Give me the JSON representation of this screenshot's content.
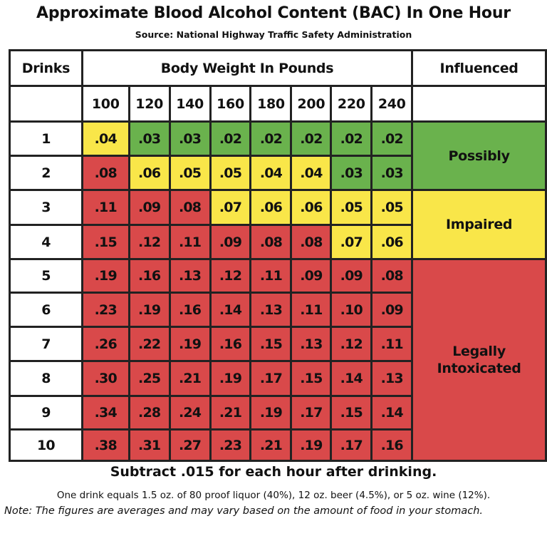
{
  "chart_data": {
    "type": "table",
    "title": "Approximate Blood Alcohol Content (BAC) In One Hour",
    "subtitle": "Source: National Highway Traffic Safety Administration",
    "row_header": "Drinks",
    "column_group_header": "Body Weight In Pounds",
    "zone_header": "Influenced",
    "columns": [
      "100",
      "120",
      "140",
      "160",
      "180",
      "200",
      "220",
      "240"
    ],
    "rows": [
      {
        "drinks": "1",
        "values": [
          ".04",
          ".03",
          ".03",
          ".02",
          ".02",
          ".02",
          ".02",
          ".02"
        ]
      },
      {
        "drinks": "2",
        "values": [
          ".08",
          ".06",
          ".05",
          ".05",
          ".04",
          ".04",
          ".03",
          ".03"
        ]
      },
      {
        "drinks": "3",
        "values": [
          ".11",
          ".09",
          ".08",
          ".07",
          ".06",
          ".06",
          ".05",
          ".05"
        ]
      },
      {
        "drinks": "4",
        "values": [
          ".15",
          ".12",
          ".11",
          ".09",
          ".08",
          ".08",
          ".07",
          ".06"
        ]
      },
      {
        "drinks": "5",
        "values": [
          ".19",
          ".16",
          ".13",
          ".12",
          ".11",
          ".09",
          ".09",
          ".08"
        ]
      },
      {
        "drinks": "6",
        "values": [
          ".23",
          ".19",
          ".16",
          ".14",
          ".13",
          ".11",
          ".10",
          ".09"
        ]
      },
      {
        "drinks": "7",
        "values": [
          ".26",
          ".22",
          ".19",
          ".16",
          ".15",
          ".13",
          ".12",
          ".11"
        ]
      },
      {
        "drinks": "8",
        "values": [
          ".30",
          ".25",
          ".21",
          ".19",
          ".17",
          ".15",
          ".14",
          ".13"
        ]
      },
      {
        "drinks": "9",
        "values": [
          ".34",
          ".28",
          ".24",
          ".21",
          ".19",
          ".17",
          ".15",
          ".14"
        ]
      },
      {
        "drinks": "10",
        "values": [
          ".38",
          ".31",
          ".27",
          ".23",
          ".21",
          ".19",
          ".17",
          ".16"
        ]
      }
    ],
    "zones": [
      {
        "label": "Possibly",
        "color": "#6ab24d",
        "rows": 2
      },
      {
        "label": "Impaired",
        "color": "#f9e649",
        "rows": 2
      },
      {
        "label": "Legally Intoxicated",
        "color": "#d9494a",
        "rows": 6
      }
    ],
    "cell_colors": {
      "green": "#6ab24d",
      "yellow": "#f9e649",
      "red": "#d9494a"
    }
  },
  "footer": {
    "subtract": "Subtract .015 for each hour after drinking.",
    "one_drink": "One drink equals 1.5 oz. of 80 proof liquor (40%), 12 oz. beer (4.5%), or 5 oz. wine (12%).",
    "note": "Note: The figures are averages and may vary based on the amount of food in your stomach."
  }
}
